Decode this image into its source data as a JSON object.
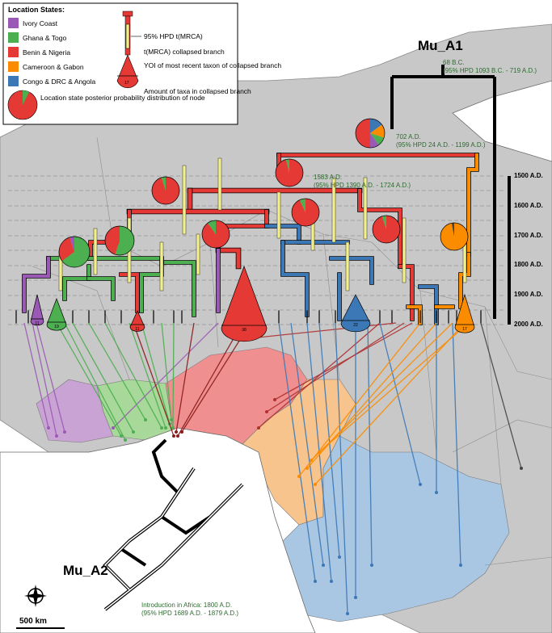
{
  "legend": {
    "title": "Location States:",
    "states": [
      {
        "label": "Ivory Coast",
        "color": "#9b59b6"
      },
      {
        "label": "Ghana & Togo",
        "color": "#4caf50"
      },
      {
        "label": "Benin & Nigeria",
        "color": "#e53935"
      },
      {
        "label": "Cameroon & Gabon",
        "color": "#fb8c00"
      },
      {
        "label": "Congo & DRC & Angola",
        "color": "#3b78b5"
      }
    ],
    "pie_label": "Location state posterior probability distribution of node",
    "hpd_label": "95% HPD t(MRCA)",
    "collapsed_label": "t(MRCA) collapsed branch",
    "yoi_label": "YOI of most recent taxon of collapsed branch",
    "amount_label": "Amount of taxa in collapsed branch",
    "sample_count": "17"
  },
  "lineages": {
    "mu_a1": "Mu_A1",
    "mu_a2": "Mu_A2"
  },
  "annotations": {
    "root_date": "68 B.C.",
    "root_hpd": "(95% HPD 1093 B.C. - 719 A.D.)",
    "node_702": "702 A.D.",
    "node_702_hpd": "(95% HPD 24 A.D. - 1199 A.D.)",
    "node_1583": "1583 A.D.",
    "node_1583_hpd": "(95% HPD 1390 A.D. - 1724 A.D.)",
    "intro": "Introduction in Africa: 1800 A.D.",
    "intro_hpd": "(95% HPD 1689 A.D. - 1879 A.D.)"
  },
  "time_axis": [
    "1500 A.D.",
    "1600 A.D.",
    "1700 A.D.",
    "1800 A.D.",
    "1900 A.D.",
    "2000 A.D."
  ],
  "collapsed_counts": [
    "11",
    "19",
    "11",
    "38",
    "22",
    "17"
  ],
  "scale_bar": "500 km",
  "colors": {
    "ocean": "#ffffff",
    "land": "#c8c8c8",
    "ivory": "#c9a3d4",
    "ghana": "#a8d89a",
    "benin": "#ef8f8f",
    "cameroon": "#f7c48e",
    "congo": "#a9c6e3"
  }
}
